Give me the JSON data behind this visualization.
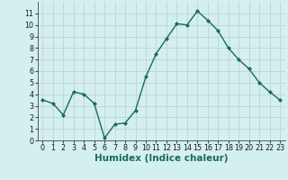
{
  "x": [
    0,
    1,
    2,
    3,
    4,
    5,
    6,
    7,
    8,
    9,
    10,
    11,
    12,
    13,
    14,
    15,
    16,
    17,
    18,
    19,
    20,
    21,
    22,
    23
  ],
  "y": [
    3.5,
    3.2,
    2.2,
    4.2,
    4.0,
    3.2,
    0.2,
    1.4,
    1.5,
    2.6,
    5.5,
    7.5,
    8.8,
    10.1,
    10.0,
    11.2,
    10.4,
    9.5,
    8.0,
    7.0,
    6.2,
    5.0,
    4.2,
    3.5
  ],
  "line_color": "#1a6b5a",
  "marker": "D",
  "marker_size": 2,
  "bg_color": "#d4efef",
  "grid_color": "#c0d8d4",
  "xlabel": "Humidex (Indice chaleur)",
  "xlim": [
    -0.5,
    23.5
  ],
  "ylim": [
    0,
    12
  ],
  "yticks": [
    0,
    1,
    2,
    3,
    4,
    5,
    6,
    7,
    8,
    9,
    10,
    11
  ],
  "xticks": [
    0,
    1,
    2,
    3,
    4,
    5,
    6,
    7,
    8,
    9,
    10,
    11,
    12,
    13,
    14,
    15,
    16,
    17,
    18,
    19,
    20,
    21,
    22,
    23
  ],
  "tick_fontsize": 5.8,
  "label_fontsize": 7.5,
  "linewidth": 1.0
}
